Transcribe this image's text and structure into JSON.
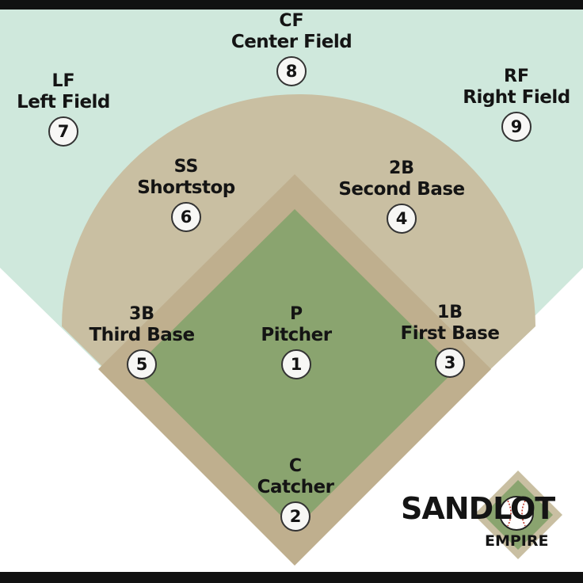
{
  "positions": [
    {
      "abbr": "CF",
      "name": "Center Field",
      "number": "8"
    },
    {
      "abbr": "LF",
      "name": "Left Field",
      "number": "7"
    },
    {
      "abbr": "RF",
      "name": "Right Field",
      "number": "9"
    },
    {
      "abbr": "SS",
      "name": "Shortstop",
      "number": "6"
    },
    {
      "abbr": "2B",
      "name": "Second Base",
      "number": "4"
    },
    {
      "abbr": "3B",
      "name": "Third Base",
      "number": "5"
    },
    {
      "abbr": "P",
      "name": "Pitcher",
      "number": "1"
    },
    {
      "abbr": "1B",
      "name": "First Base",
      "number": "3"
    },
    {
      "abbr": "C",
      "name": "Catcher",
      "number": "2"
    }
  ],
  "logo": {
    "title": "SANDLOT",
    "subtitle": "EMPIRE"
  },
  "colors": {
    "outfield": "#cfe8dc",
    "infield_dirt": "#c9bfa2",
    "baseline_dirt": "#bfaf8e",
    "infield_grass": "#8aa46f",
    "frame": "#111111"
  }
}
